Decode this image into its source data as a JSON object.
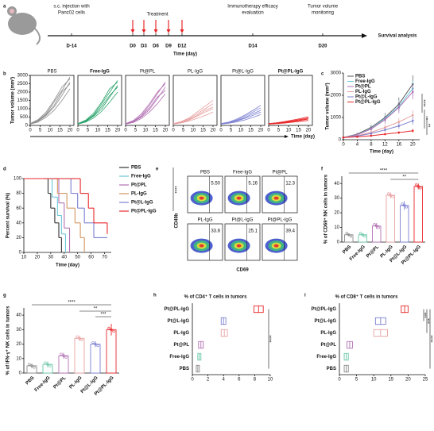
{
  "timeline": {
    "label": "a",
    "events": [
      {
        "lines": [
          "s.c. injection with",
          "Panc02 cells"
        ]
      },
      {
        "lines": [
          "Immunotherapy efficacy",
          "evaluation"
        ]
      },
      {
        "lines": [
          "Tumor volume",
          "monitoring"
        ]
      }
    ],
    "treatment": "Treatment",
    "days": [
      "D-14",
      "D0",
      "D3",
      "D6",
      "D9",
      "D12",
      "D14",
      "D20"
    ],
    "xlabel": "Time (day)",
    "end_label": "Survival analysis"
  },
  "chart_data": [
    {
      "type": "small-multiples",
      "label": "b",
      "ylabel": "Tumor volume (mm³)",
      "xlabel": "Time (day)",
      "x": [
        0,
        4,
        8,
        12,
        16,
        20
      ],
      "xlim": [
        0,
        22
      ],
      "xticks": [
        0,
        5,
        10,
        15,
        20
      ],
      "ylim": [
        0,
        3000
      ],
      "yticks": [
        0,
        500,
        1000,
        1500,
        2000,
        2500,
        3000
      ],
      "panels": [
        {
          "title": "PBS",
          "color": "#8c8c8c",
          "lines": [
            [
              100,
              300,
              700,
              1400,
              2100,
              2900
            ],
            [
              90,
              250,
              600,
              1100,
              1800,
              2600
            ],
            [
              110,
              350,
              800,
              1500,
              2300,
              2800
            ],
            [
              80,
              200,
              500,
              900,
              1500,
              2200
            ],
            [
              100,
              280,
              650,
              1200,
              2000,
              2500
            ]
          ]
        },
        {
          "title": "Free-IgG",
          "color": "#2aa36b",
          "lines": [
            [
              100,
              280,
              650,
              1300,
              2000,
              2700
            ],
            [
              90,
              230,
              550,
              1000,
              1700,
              2400
            ],
            [
              110,
              320,
              750,
              1400,
              2200,
              2600
            ],
            [
              80,
              200,
              450,
              850,
              1400,
              2000
            ],
            [
              100,
              260,
              600,
              1150,
              1800,
              2300
            ]
          ]
        },
        {
          "title": "Pt@PL",
          "color": "#b26fb3",
          "lines": [
            [
              100,
              260,
              600,
              1200,
              1900,
              2600
            ],
            [
              90,
              220,
              500,
              950,
              1600,
              2300
            ],
            [
              110,
              300,
              700,
              1300,
              2000,
              2500
            ],
            [
              80,
              180,
              420,
              800,
              1300,
              1900
            ],
            [
              100,
              240,
              560,
              1050,
              1700,
              2100
            ]
          ]
        },
        {
          "title": "PL-IgG",
          "color": "#e8a0a0",
          "lines": [
            [
              100,
              200,
              400,
              700,
              1000,
              1300
            ],
            [
              90,
              170,
              320,
              550,
              800,
              1000
            ],
            [
              110,
              230,
              450,
              800,
              1150,
              1500
            ],
            [
              80,
              150,
              260,
              420,
              600,
              800
            ],
            [
              100,
              180,
              350,
              600,
              900,
              1100
            ]
          ]
        },
        {
          "title": "Pt@L-IgG",
          "color": "#7b7fd1",
          "lines": [
            [
              100,
              180,
              330,
              550,
              800,
              1050
            ],
            [
              90,
              150,
              260,
              420,
              600,
              800
            ],
            [
              110,
              200,
              380,
              620,
              900,
              1200
            ],
            [
              80,
              130,
              210,
              330,
              480,
              650
            ],
            [
              100,
              160,
              290,
              470,
              700,
              900
            ]
          ]
        },
        {
          "title": "Pt@PL-IgG",
          "color": "#e8282b",
          "lines": [
            [
              100,
              140,
              200,
              280,
              360,
              450
            ],
            [
              90,
              120,
              170,
              230,
              300,
              380
            ],
            [
              110,
              160,
              230,
              320,
              410,
              520
            ],
            [
              80,
              100,
              140,
              190,
              240,
              300
            ],
            [
              100,
              130,
              180,
              250,
              320,
              400
            ]
          ]
        }
      ]
    },
    {
      "type": "line",
      "label": "c",
      "ylabel": "Tumor volume (mm³)",
      "xlabel": "Time (day)",
      "x": [
        0,
        4,
        8,
        12,
        16,
        20
      ],
      "xlim": [
        0,
        22
      ],
      "xticks": [
        0,
        4,
        8,
        12,
        16,
        20
      ],
      "ylim": [
        0,
        3000
      ],
      "yticks": [
        0,
        1000,
        2000,
        3000
      ],
      "series": [
        {
          "name": "PBS",
          "color": "#555555",
          "values": [
            100,
            250,
            550,
            1000,
            1600,
            2500
          ],
          "errors": [
            20,
            60,
            120,
            200,
            300,
            400
          ]
        },
        {
          "name": "Free-IgG",
          "color": "#6cc7d8",
          "values": [
            100,
            230,
            500,
            950,
            1500,
            2300
          ],
          "errors": [
            20,
            50,
            110,
            190,
            280,
            350
          ]
        },
        {
          "name": "Pt@PL",
          "color": "#b26fb3",
          "values": [
            100,
            220,
            480,
            900,
            1450,
            2150
          ],
          "errors": [
            20,
            50,
            100,
            180,
            260,
            330
          ]
        },
        {
          "name": "PL-IgG",
          "color": "#e8a0a0",
          "values": [
            100,
            180,
            330,
            550,
            800,
            1100
          ],
          "errors": [
            20,
            40,
            80,
            120,
            170,
            220
          ]
        },
        {
          "name": "Pt@L-IgG",
          "color": "#7b7fd1",
          "values": [
            100,
            160,
            280,
            440,
            620,
            850
          ],
          "errors": [
            20,
            35,
            60,
            90,
            130,
            170
          ]
        },
        {
          "name": "Pt@PL-IgG",
          "color": "#e8282b",
          "values": [
            100,
            130,
            180,
            250,
            320,
            400
          ],
          "errors": [
            15,
            25,
            35,
            50,
            60,
            80
          ]
        }
      ],
      "annotations": [
        "****",
        "*",
        "**"
      ]
    },
    {
      "type": "survival",
      "label": "d",
      "ylabel": "Percent survival (%)",
      "xlabel": "Time (day)",
      "xlim": [
        10,
        75
      ],
      "xticks": [
        10,
        20,
        30,
        40,
        50,
        60,
        70
      ],
      "ylim": [
        0,
        100
      ],
      "yticks": [
        0,
        20,
        40,
        60,
        80,
        100
      ],
      "series": [
        {
          "name": "PBS",
          "color": "#333333",
          "x": [
            10,
            25,
            28,
            30,
            33,
            36,
            38
          ],
          "values": [
            100,
            100,
            80,
            60,
            40,
            20,
            0
          ]
        },
        {
          "name": "Free-IgG",
          "color": "#6cc7d8",
          "x": [
            10,
            28,
            31,
            35,
            38,
            41
          ],
          "values": [
            100,
            100,
            75,
            50,
            25,
            0
          ]
        },
        {
          "name": "Pt@PL",
          "color": "#b26fb3",
          "x": [
            10,
            32,
            36,
            40,
            44
          ],
          "values": [
            100,
            100,
            67,
            33,
            0
          ]
        },
        {
          "name": "PL-IgG",
          "color": "#d2955f",
          "x": [
            10,
            30,
            35,
            42,
            48,
            52,
            55
          ],
          "values": [
            100,
            100,
            80,
            60,
            40,
            20,
            0
          ]
        },
        {
          "name": "Pt@L-IgG",
          "color": "#7b7fd1",
          "x": [
            10,
            38,
            45,
            50,
            55,
            62,
            72
          ],
          "values": [
            100,
            100,
            80,
            60,
            40,
            20,
            20
          ]
        },
        {
          "name": "Pt@PL-IgG",
          "color": "#e8282b",
          "x": [
            10,
            45,
            52,
            58,
            62,
            72
          ],
          "values": [
            100,
            100,
            80,
            60,
            40,
            25
          ]
        }
      ],
      "annotations": [
        "****"
      ]
    },
    {
      "type": "flow",
      "label": "e",
      "xlabel": "CD69",
      "ylabel": "CD49b",
      "categories": [
        "PBS",
        "Free-IgG",
        "Pt@PL",
        "PL-IgG",
        "Pt@L-IgG",
        "Pt@PL-IgG"
      ],
      "values": [
        5.5,
        5.16,
        12.3,
        33.8,
        25.1,
        39.4
      ],
      "value_labels": [
        "5.50",
        "5.16",
        "12.3",
        "33.8",
        "25.1",
        "39.4"
      ]
    },
    {
      "type": "dot-bar",
      "label": "f",
      "ylabel": "% of CD69⁺ NK cells in tumors",
      "categories": [
        "PBS",
        "Free-IgG",
        "Pt@PL",
        "PL-IgG",
        "Pt@L-IgG",
        "Pt@PL-IgG"
      ],
      "colors": [
        "#8c8c8c",
        "#6cc7a8",
        "#b26fb3",
        "#e8a0a0",
        "#7b7fd1",
        "#e8282b"
      ],
      "values": [
        5,
        5,
        11,
        32,
        25,
        38
      ],
      "errors": [
        1,
        1,
        2,
        2,
        3,
        2
      ],
      "ylim": [
        0,
        45
      ],
      "yticks": [
        0,
        10,
        20,
        30,
        40
      ],
      "annotations": [
        "****",
        "**"
      ]
    },
    {
      "type": "dot-bar",
      "label": "g",
      "ylabel": "% of IFN-γ⁺ NK cells in tumors",
      "categories": [
        "PBS",
        "Free-IgG",
        "Pt@PL",
        "PL-IgG",
        "Pt@L-IgG",
        "Pt@PL-IgG"
      ],
      "colors": [
        "#8c8c8c",
        "#6cc7a8",
        "#b26fb3",
        "#e8a0a0",
        "#7b7fd1",
        "#e8282b"
      ],
      "values": [
        5,
        6,
        12,
        24,
        20,
        30
      ],
      "errors": [
        1.5,
        2,
        2,
        2,
        2,
        4
      ],
      "ylim": [
        0,
        45
      ],
      "yticks": [
        0,
        10,
        20,
        30,
        40
      ],
      "annotations": [
        "****",
        "**",
        "***"
      ]
    },
    {
      "type": "box-h",
      "label": "h",
      "title": "% of CD4⁺ T cells in tumors",
      "categories": [
        "Pt@PL-IgG",
        "Pt@L-IgG",
        "PL-IgG",
        "Pt@PL",
        "Free-IgG",
        "PBS"
      ],
      "colors": [
        "#e8282b",
        "#7b7fd1",
        "#e8a0a0",
        "#b26fb3",
        "#6cc7a8",
        "#8c8c8c"
      ],
      "values": [
        8.5,
        4.0,
        4.1,
        1.1,
        0.9,
        0.7
      ],
      "errors": [
        0.6,
        0.3,
        0.4,
        0.3,
        0.2,
        0.2
      ],
      "xlim": [
        0,
        10
      ],
      "xticks": [
        0,
        2,
        4,
        6,
        8,
        10
      ],
      "annotations": [
        "****"
      ]
    },
    {
      "type": "box-h",
      "label": "i",
      "title": "% of CD8⁺ T cells in tumors",
      "categories": [
        "Pt@PL-IgG",
        "Pt@L-IgG",
        "PL-IgG",
        "Pt@PL",
        "Free-IgG",
        "PBS"
      ],
      "colors": [
        "#e8282b",
        "#7b7fd1",
        "#e8a0a0",
        "#b26fb3",
        "#6cc7a8",
        "#8c8c8c"
      ],
      "values": [
        19,
        12,
        12,
        3,
        2,
        2
      ],
      "errors": [
        1,
        1.5,
        2,
        0.8,
        0.6,
        0.6
      ],
      "xlim": [
        0,
        25
      ],
      "xticks": [
        0,
        5,
        10,
        15,
        20,
        25
      ],
      "annotations": [
        "***",
        "***",
        "****"
      ]
    }
  ]
}
